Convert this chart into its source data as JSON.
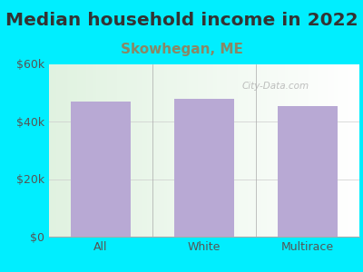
{
  "title": "Median household income in 2022",
  "subtitle": "Skowhegan, ME",
  "categories": [
    "All",
    "White",
    "Multirace"
  ],
  "values": [
    47000,
    48000,
    45500
  ],
  "bar_color": "#b8a9d4",
  "background_outer": "#00eeff",
  "plot_bg_left": "#d8f0d8",
  "plot_bg_right": "#f5f5ff",
  "title_fontsize": 14.5,
  "title_color": "#333333",
  "subtitle_fontsize": 11,
  "subtitle_color": "#888866",
  "tick_color": "#555555",
  "ylim": [
    0,
    60000
  ],
  "yticks": [
    0,
    20000,
    40000,
    60000
  ],
  "ytick_labels": [
    "$0",
    "$20k",
    "$40k",
    "$60k"
  ],
  "watermark": "City-Data.com"
}
